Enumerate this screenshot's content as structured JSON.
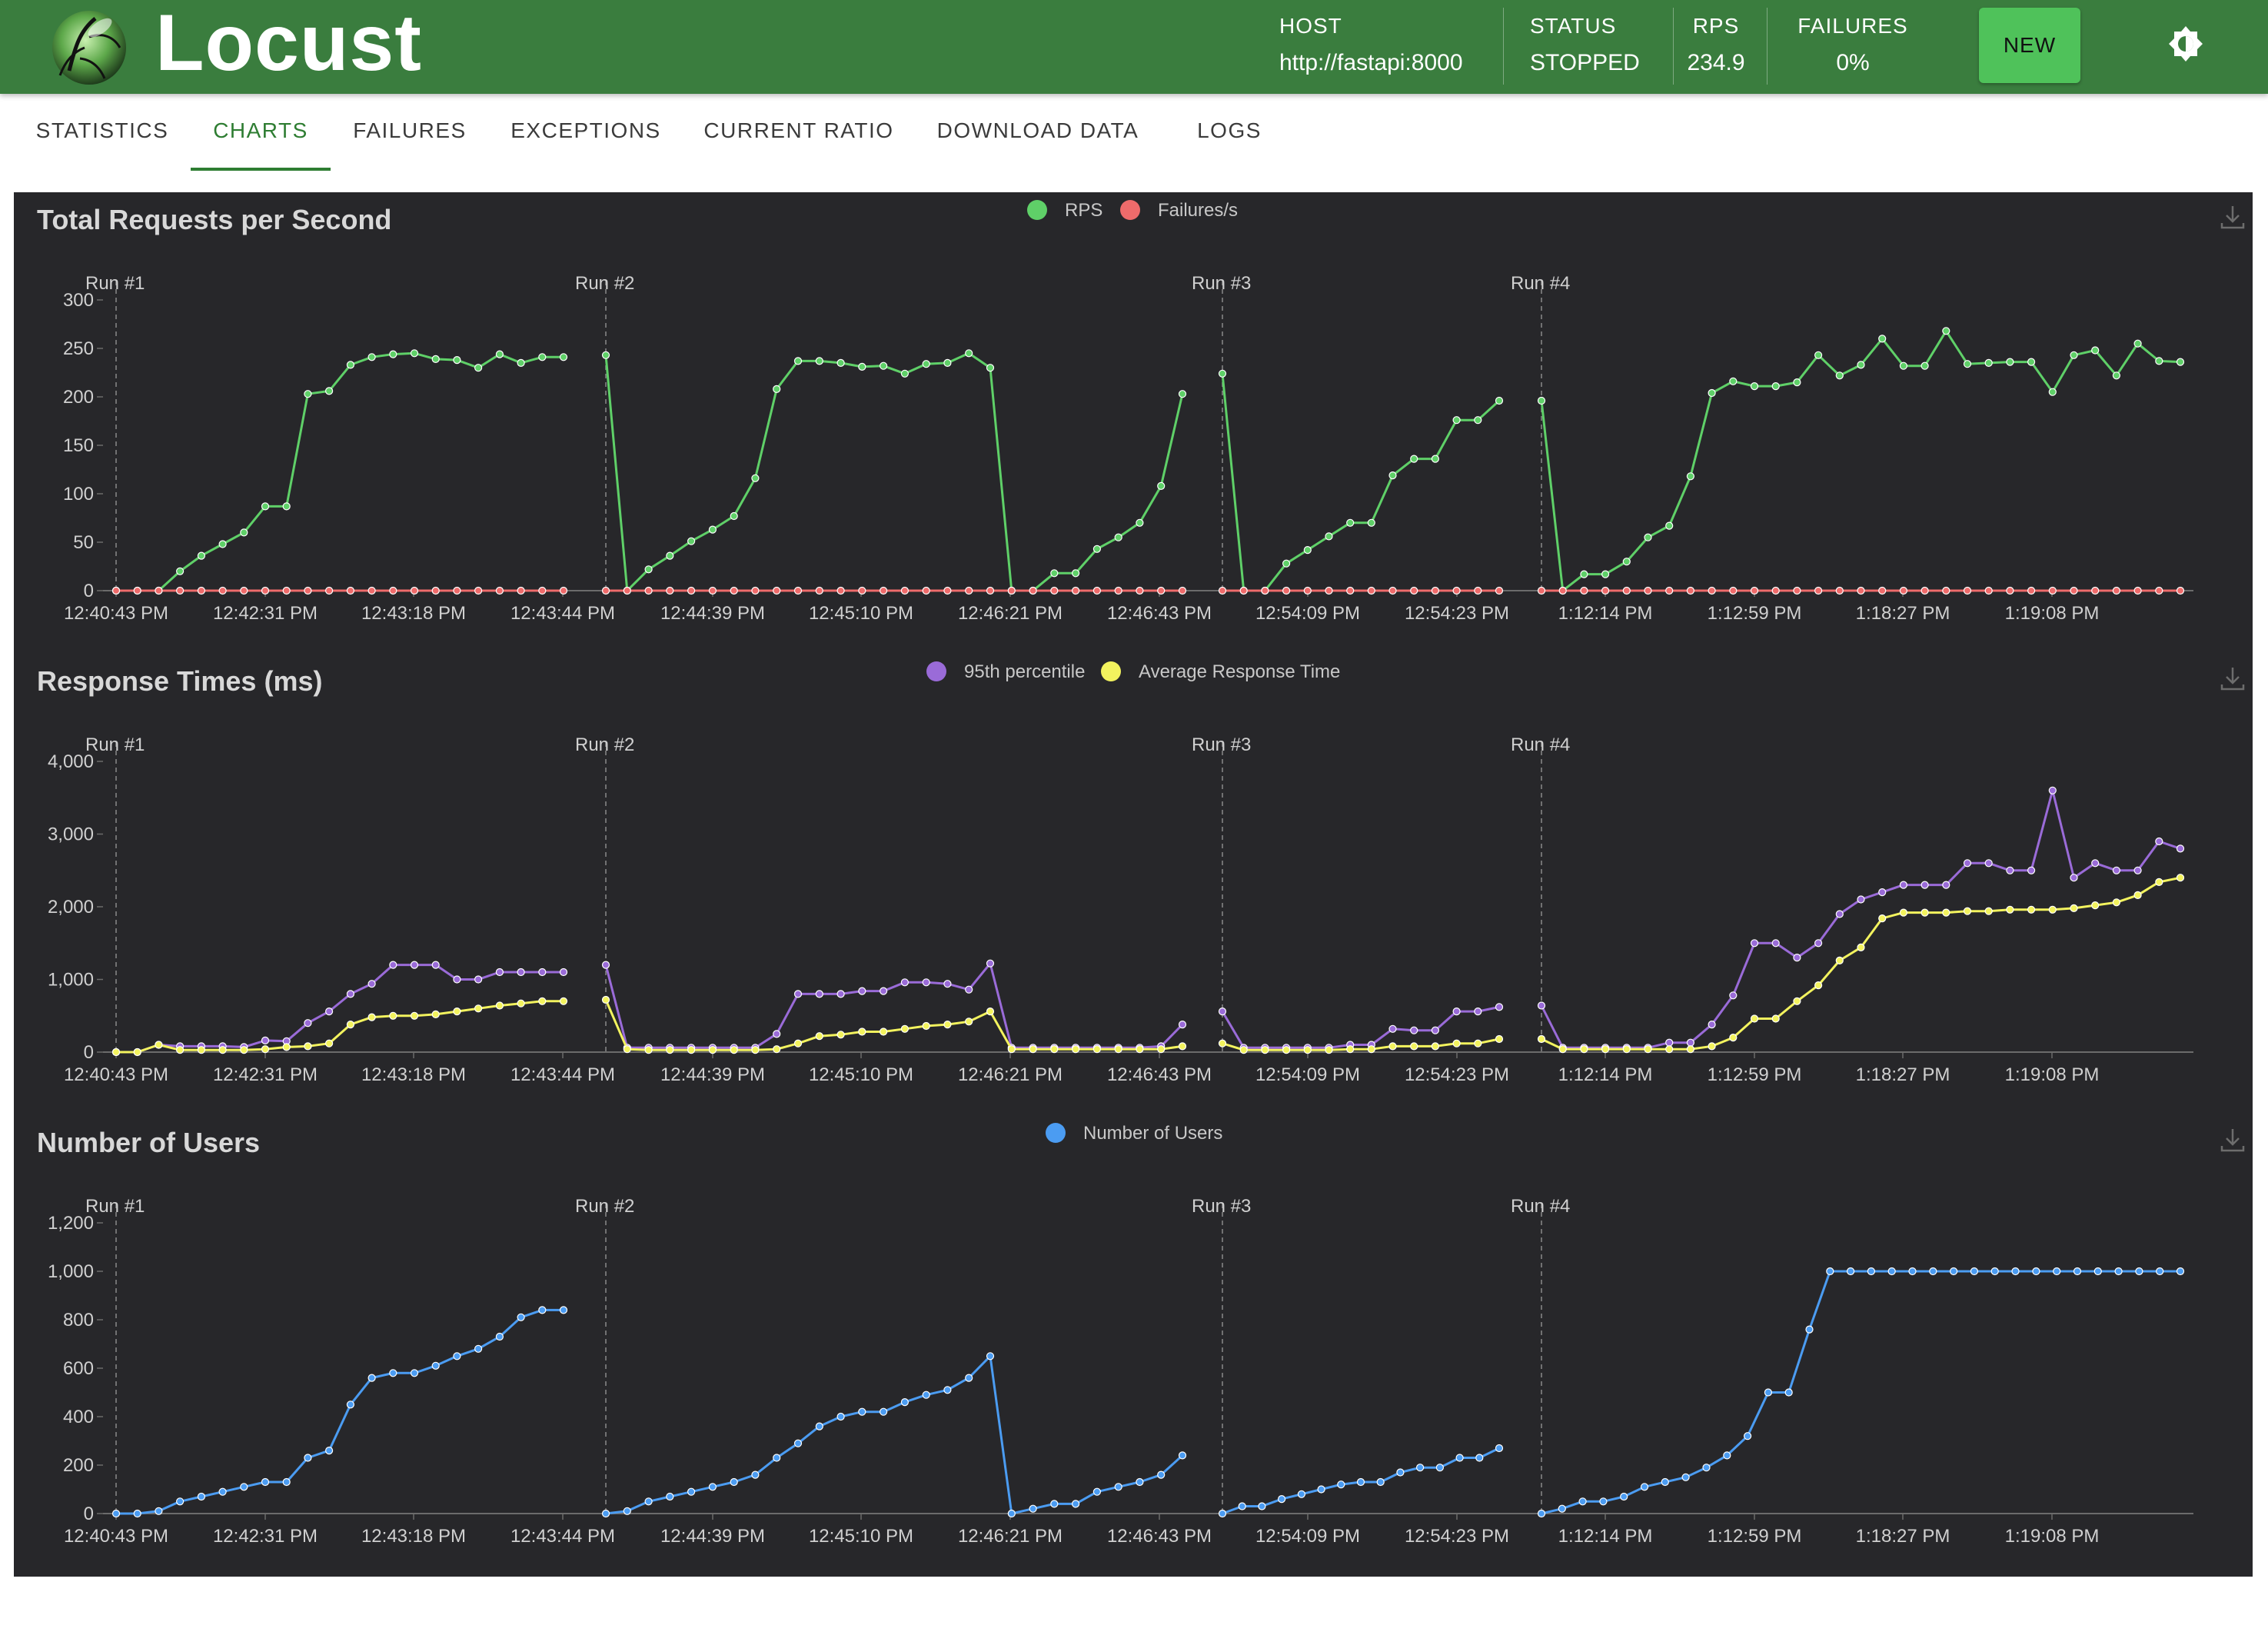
{
  "app": {
    "title": "Locust",
    "host_label": "HOST",
    "host_value": "http://fastapi:8000",
    "status_label": "STATUS",
    "status_value": "STOPPED",
    "rps_label": "RPS",
    "rps_value": "234.9",
    "failures_label": "FAILURES",
    "failures_value": "0%",
    "new_button": "NEW"
  },
  "tabs": [
    {
      "label": "STATISTICS",
      "active": false
    },
    {
      "label": "CHARTS",
      "active": true
    },
    {
      "label": "FAILURES",
      "active": false
    },
    {
      "label": "EXCEPTIONS",
      "active": false
    },
    {
      "label": "CURRENT RATIO",
      "active": false
    },
    {
      "label": "DOWNLOAD DATA",
      "active": false
    },
    {
      "label": "LOGS",
      "active": false
    }
  ],
  "chart_data": [
    {
      "type": "line",
      "title": "Total Requests per Second",
      "x_ticks": [
        "12:40:43 PM",
        "12:42:31 PM",
        "12:43:18 PM",
        "12:43:44 PM",
        "12:44:39 PM",
        "12:45:10 PM",
        "12:46:21 PM",
        "12:46:43 PM",
        "12:54:09 PM",
        "12:54:23 PM",
        "1:12:14 PM",
        "1:12:59 PM",
        "1:18:27 PM",
        "1:19:08 PM"
      ],
      "run_markers": [
        "Run #1",
        "Run #2",
        "Run #3",
        "Run #4"
      ],
      "y_ticks": [
        "0",
        "50",
        "100",
        "150",
        "200",
        "250",
        "300"
      ],
      "ylim": [
        0,
        300
      ],
      "legend_position": "top-center",
      "series": [
        {
          "name": "RPS",
          "color": "#5fd068",
          "runs": [
            [
              0,
              0,
              0,
              20,
              36,
              48,
              60,
              87,
              87,
              203,
              206,
              233,
              241,
              244,
              245,
              239,
              238,
              230,
              244,
              235,
              241,
              241
            ],
            [
              243,
              0,
              22,
              36,
              51,
              63,
              77,
              116,
              208,
              237,
              237,
              235,
              231,
              232,
              224,
              234,
              235,
              245,
              230,
              0,
              0,
              18,
              18,
              43,
              55,
              70,
              108,
              203
            ],
            [
              224,
              0,
              0,
              28,
              42,
              56,
              70,
              70,
              119,
              136,
              136,
              176,
              176,
              196
            ],
            [
              196,
              0,
              17,
              17,
              30,
              55,
              67,
              118,
              204,
              216,
              211,
              211,
              215,
              243,
              222,
              233,
              260,
              232,
              232,
              268,
              234,
              235,
              236,
              236,
              205,
              243,
              248,
              222,
              255,
              237,
              236
            ]
          ]
        },
        {
          "name": "Failures/s",
          "color": "#ee6b6b",
          "runs": [
            [
              0,
              0,
              0,
              0,
              0,
              0,
              0,
              0,
              0,
              0,
              0,
              0,
              0,
              0,
              0,
              0,
              0,
              0,
              0,
              0,
              0,
              0
            ],
            [
              0,
              0,
              0,
              0,
              0,
              0,
              0,
              0,
              0,
              0,
              0,
              0,
              0,
              0,
              0,
              0,
              0,
              0,
              0,
              0,
              0,
              0,
              0,
              0,
              0,
              0,
              0,
              0
            ],
            [
              0,
              0,
              0,
              0,
              0,
              0,
              0,
              0,
              0,
              0,
              0,
              0,
              0,
              0
            ],
            [
              0,
              0,
              0,
              0,
              0,
              0,
              0,
              0,
              0,
              0,
              0,
              0,
              0,
              0,
              0,
              0,
              0,
              0,
              0,
              0,
              0,
              0,
              0,
              0,
              0,
              0,
              0,
              0,
              0,
              0,
              0
            ]
          ]
        }
      ]
    },
    {
      "type": "line",
      "title": "Response Times (ms)",
      "x_ticks": [
        "12:40:43 PM",
        "12:42:31 PM",
        "12:43:18 PM",
        "12:43:44 PM",
        "12:44:39 PM",
        "12:45:10 PM",
        "12:46:21 PM",
        "12:46:43 PM",
        "12:54:09 PM",
        "12:54:23 PM",
        "1:12:14 PM",
        "1:12:59 PM",
        "1:18:27 PM",
        "1:19:08 PM"
      ],
      "run_markers": [
        "Run #1",
        "Run #2",
        "Run #3",
        "Run #4"
      ],
      "y_ticks": [
        "0",
        "1,000",
        "2,000",
        "3,000",
        "4,000"
      ],
      "ylim": [
        0,
        4000
      ],
      "legend_position": "top-center",
      "series": [
        {
          "name": "95th percentile",
          "color": "#9a6bd8",
          "runs": [
            [
              0,
              0,
              100,
              80,
              80,
              80,
              70,
              160,
              150,
              400,
              560,
              800,
              940,
              1200,
              1200,
              1200,
              1000,
              1000,
              1100,
              1100,
              1100,
              1100
            ],
            [
              1200,
              60,
              60,
              60,
              60,
              60,
              60,
              60,
              250,
              800,
              800,
              800,
              840,
              840,
              960,
              960,
              940,
              860,
              1220,
              60,
              60,
              60,
              60,
              60,
              60,
              60,
              80,
              380
            ],
            [
              560,
              60,
              60,
              60,
              60,
              60,
              100,
              100,
              320,
              300,
              300,
              560,
              560,
              620
            ],
            [
              640,
              60,
              60,
              60,
              60,
              60,
              130,
              130,
              380,
              780,
              1500,
              1500,
              1300,
              1500,
              1900,
              2100,
              2200,
              2300,
              2300,
              2300,
              2600,
              2600,
              2500,
              2500,
              3600,
              2400,
              2600,
              2500,
              2500,
              2900,
              2800
            ]
          ]
        },
        {
          "name": "Average Response Time",
          "color": "#f3f35e",
          "runs": [
            [
              0,
              0,
              100,
              30,
              30,
              30,
              30,
              40,
              70,
              80,
              120,
              380,
              480,
              500,
              500,
              520,
              560,
              600,
              640,
              670,
              700,
              700
            ],
            [
              720,
              40,
              30,
              30,
              30,
              30,
              30,
              30,
              40,
              120,
              220,
              240,
              280,
              280,
              320,
              360,
              380,
              420,
              560,
              40,
              40,
              40,
              40,
              40,
              40,
              40,
              40,
              80
            ],
            [
              120,
              30,
              30,
              30,
              30,
              30,
              40,
              40,
              80,
              80,
              80,
              120,
              120,
              180
            ],
            [
              180,
              40,
              40,
              40,
              40,
              40,
              40,
              40,
              80,
              200,
              460,
              460,
              700,
              920,
              1260,
              1440,
              1840,
              1920,
              1920,
              1920,
              1940,
              1940,
              1960,
              1960,
              1960,
              1980,
              2020,
              2060,
              2160,
              2340,
              2400
            ]
          ]
        }
      ]
    },
    {
      "type": "line",
      "title": "Number of Users",
      "x_ticks": [
        "12:40:43 PM",
        "12:42:31 PM",
        "12:43:18 PM",
        "12:43:44 PM",
        "12:44:39 PM",
        "12:45:10 PM",
        "12:46:21 PM",
        "12:46:43 PM",
        "12:54:09 PM",
        "12:54:23 PM",
        "1:12:14 PM",
        "1:12:59 PM",
        "1:18:27 PM",
        "1:19:08 PM"
      ],
      "run_markers": [
        "Run #1",
        "Run #2",
        "Run #3",
        "Run #4"
      ],
      "y_ticks": [
        "0",
        "200",
        "400",
        "600",
        "800",
        "1,000",
        "1,200"
      ],
      "ylim": [
        0,
        1200
      ],
      "legend_position": "top-center",
      "series": [
        {
          "name": "Number of Users",
          "color": "#4b9cf2",
          "runs": [
            [
              0,
              0,
              10,
              50,
              70,
              90,
              110,
              130,
              130,
              230,
              260,
              450,
              560,
              580,
              580,
              610,
              650,
              680,
              730,
              810,
              840,
              840
            ],
            [
              0,
              10,
              50,
              70,
              90,
              110,
              130,
              160,
              230,
              290,
              360,
              400,
              420,
              420,
              460,
              490,
              510,
              560,
              650,
              0,
              20,
              40,
              40,
              90,
              110,
              130,
              160,
              240
            ],
            [
              0,
              30,
              30,
              60,
              80,
              100,
              120,
              130,
              130,
              170,
              190,
              190,
              230,
              230,
              270
            ],
            [
              0,
              20,
              50,
              50,
              70,
              110,
              130,
              150,
              190,
              240,
              320,
              500,
              500,
              760,
              1000,
              1000,
              1000,
              1000,
              1000,
              1000,
              1000,
              1000,
              1000,
              1000,
              1000,
              1000,
              1000,
              1000,
              1000,
              1000,
              1000,
              1000
            ]
          ]
        }
      ]
    }
  ]
}
